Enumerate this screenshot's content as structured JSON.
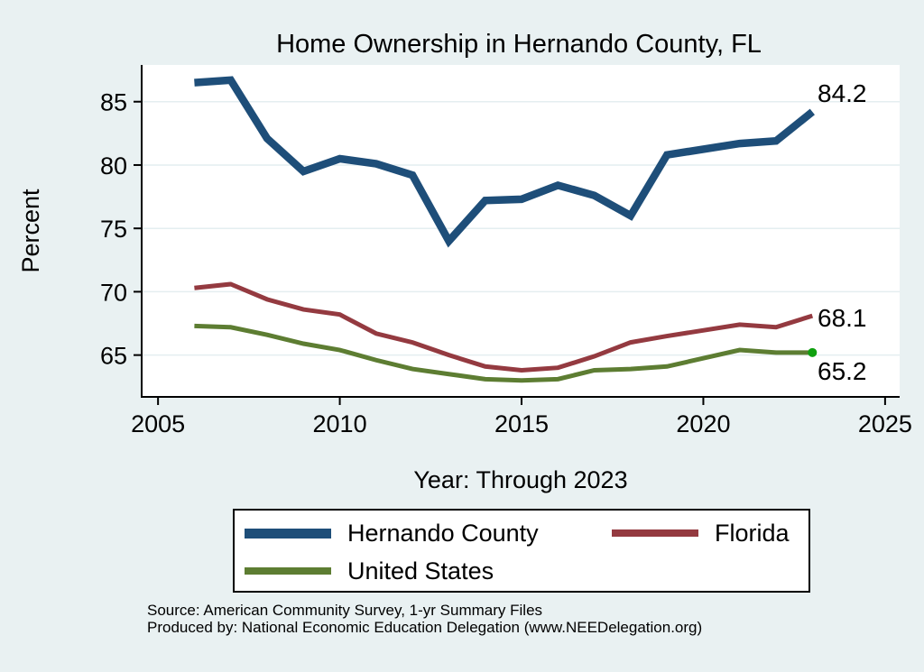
{
  "title": "Home Ownership in Hernando County, FL",
  "chart_data": {
    "type": "line",
    "title": "Home Ownership in Hernando County, FL",
    "xlabel": "Year: Through 2023",
    "ylabel": "Percent",
    "x": [
      2006,
      2007,
      2008,
      2009,
      2010,
      2011,
      2012,
      2013,
      2014,
      2015,
      2016,
      2017,
      2018,
      2019,
      2021,
      2022,
      2023
    ],
    "series": [
      {
        "name": "Hernando County",
        "color": "#1e4e79",
        "line_width": 8.5,
        "values": [
          86.5,
          86.7,
          82.1,
          79.5,
          80.5,
          80.1,
          79.2,
          74.0,
          77.2,
          77.3,
          78.4,
          77.6,
          76.0,
          80.8,
          81.7,
          81.9,
          84.2
        ],
        "end_label": "84.2",
        "end_label_dy": -11,
        "end_marker": false
      },
      {
        "name": "Florida",
        "color": "#943a40",
        "line_width": 5,
        "values": [
          70.3,
          70.6,
          69.4,
          68.6,
          68.2,
          66.7,
          66.0,
          65.0,
          64.1,
          63.8,
          64.0,
          64.9,
          66.0,
          66.5,
          67.4,
          67.2,
          68.1
        ],
        "end_label": "68.1",
        "end_label_dy": 12,
        "end_marker": false
      },
      {
        "name": "United States",
        "color": "#5d7d32",
        "line_width": 5,
        "values": [
          67.3,
          67.2,
          66.6,
          65.9,
          65.4,
          64.6,
          63.9,
          63.5,
          63.1,
          63.0,
          63.1,
          63.8,
          63.9,
          64.1,
          65.4,
          65.2,
          65.2
        ],
        "end_label": "65.2",
        "end_label_dy": 30,
        "end_marker": true,
        "end_marker_color": "#0fa00f"
      }
    ],
    "xlim": [
      2004.55,
      2025.4
    ],
    "ylim": [
      61.7,
      87.9
    ],
    "xticks": [
      2005,
      2010,
      2015,
      2020,
      2025
    ],
    "yticks": [
      65,
      70,
      75,
      80,
      85
    ],
    "grid": true,
    "legend_position": "bottom"
  },
  "notes": {
    "line1": "Source: American Community Survey, 1-yr Summary Files",
    "line2": "Produced by: National Economic Education Delegation (www.NEEDelegation.org)"
  },
  "colors": {
    "background": "#e9f1f2",
    "plot_background": "#ffffff",
    "gridline": "#e4eef0",
    "axis": "#000000",
    "title": "#1e4e79"
  }
}
